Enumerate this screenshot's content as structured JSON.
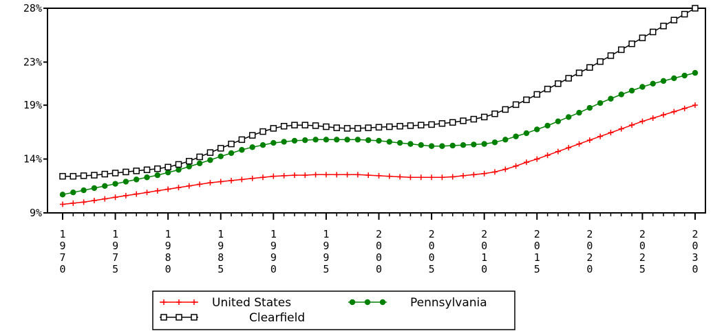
{
  "chart_data": {
    "type": "line",
    "title": "",
    "xlabel": "",
    "ylabel": "",
    "x": [
      1970,
      1971,
      1972,
      1973,
      1974,
      1975,
      1976,
      1977,
      1978,
      1979,
      1980,
      1981,
      1982,
      1983,
      1984,
      1985,
      1986,
      1987,
      1988,
      1989,
      1990,
      1991,
      1992,
      1993,
      1994,
      1995,
      1996,
      1997,
      1998,
      1999,
      2000,
      2001,
      2002,
      2003,
      2004,
      2005,
      2006,
      2007,
      2008,
      2009,
      2010,
      2011,
      2012,
      2013,
      2014,
      2015,
      2016,
      2017,
      2018,
      2019,
      2020,
      2021,
      2022,
      2023,
      2024,
      2025,
      2026,
      2027,
      2028,
      2029,
      2030
    ],
    "xlim": [
      1970,
      2030
    ],
    "ylim": [
      9,
      28
    ],
    "y_ticks": [
      {
        "value": 9,
        "label": "9%"
      },
      {
        "value": 14,
        "label": "14%"
      },
      {
        "value": 19,
        "label": "19%"
      },
      {
        "value": 23,
        "label": "23%"
      },
      {
        "value": 28,
        "label": "28%"
      }
    ],
    "x_ticks": [
      {
        "value": 1970,
        "label": "1970"
      },
      {
        "value": 1975,
        "label": "1975"
      },
      {
        "value": 1980,
        "label": "1980"
      },
      {
        "value": 1985,
        "label": "1985"
      },
      {
        "value": 1990,
        "label": "1990"
      },
      {
        "value": 1995,
        "label": "1995"
      },
      {
        "value": 2000,
        "label": "2000"
      },
      {
        "value": 2005,
        "label": "2005"
      },
      {
        "value": 2010,
        "label": "2010"
      },
      {
        "value": 2015,
        "label": "2015"
      },
      {
        "value": 2020,
        "label": "2020"
      },
      {
        "value": 2025,
        "label": "2025"
      },
      {
        "value": 2030,
        "label": "2030"
      }
    ],
    "grid": false,
    "legend_position": "bottom",
    "series": [
      {
        "name": "United States",
        "color": "#ff0000",
        "marker": "plus",
        "values": [
          9.8,
          9.9,
          10.0,
          10.15,
          10.3,
          10.45,
          10.6,
          10.75,
          10.9,
          11.05,
          11.2,
          11.35,
          11.5,
          11.65,
          11.8,
          11.9,
          12.0,
          12.1,
          12.2,
          12.3,
          12.4,
          12.45,
          12.5,
          12.5,
          12.55,
          12.55,
          12.55,
          12.55,
          12.55,
          12.5,
          12.45,
          12.4,
          12.35,
          12.3,
          12.3,
          12.3,
          12.3,
          12.35,
          12.45,
          12.55,
          12.65,
          12.8,
          13.05,
          13.35,
          13.7,
          14.0,
          14.35,
          14.7,
          15.05,
          15.4,
          15.75,
          16.1,
          16.45,
          16.8,
          17.15,
          17.5,
          17.8,
          18.1,
          18.4,
          18.7,
          19.0
        ]
      },
      {
        "name": "Pennsylvania",
        "color": "#008000",
        "marker": "filled-circle",
        "values": [
          10.7,
          10.9,
          11.1,
          11.3,
          11.5,
          11.7,
          11.9,
          12.1,
          12.3,
          12.5,
          12.75,
          13.0,
          13.3,
          13.6,
          13.9,
          14.25,
          14.55,
          14.85,
          15.1,
          15.3,
          15.5,
          15.6,
          15.7,
          15.75,
          15.8,
          15.8,
          15.8,
          15.8,
          15.8,
          15.75,
          15.7,
          15.6,
          15.5,
          15.4,
          15.3,
          15.2,
          15.2,
          15.25,
          15.3,
          15.35,
          15.4,
          15.55,
          15.8,
          16.1,
          16.4,
          16.75,
          17.1,
          17.5,
          17.9,
          18.3,
          18.75,
          19.2,
          19.6,
          20.0,
          20.35,
          20.7,
          21.0,
          21.25,
          21.5,
          21.75,
          22.0
        ]
      },
      {
        "name": "Clearfield",
        "color": "#000000",
        "marker": "open-square",
        "values": [
          12.4,
          12.4,
          12.45,
          12.5,
          12.6,
          12.7,
          12.8,
          12.9,
          13.0,
          13.1,
          13.25,
          13.5,
          13.8,
          14.2,
          14.6,
          15.0,
          15.4,
          15.8,
          16.2,
          16.55,
          16.85,
          17.05,
          17.15,
          17.15,
          17.1,
          17.0,
          16.9,
          16.85,
          16.85,
          16.9,
          16.95,
          17.0,
          17.05,
          17.1,
          17.15,
          17.2,
          17.3,
          17.4,
          17.55,
          17.7,
          17.9,
          18.2,
          18.6,
          19.05,
          19.5,
          20.0,
          20.5,
          21.0,
          21.5,
          22.0,
          22.5,
          23.05,
          23.6,
          24.15,
          24.7,
          25.25,
          25.8,
          26.35,
          26.9,
          27.45,
          28.0
        ]
      }
    ]
  },
  "legend": {
    "items": [
      {
        "label": "United States"
      },
      {
        "label": "Pennsylvania"
      },
      {
        "label": "Clearfield"
      }
    ]
  }
}
